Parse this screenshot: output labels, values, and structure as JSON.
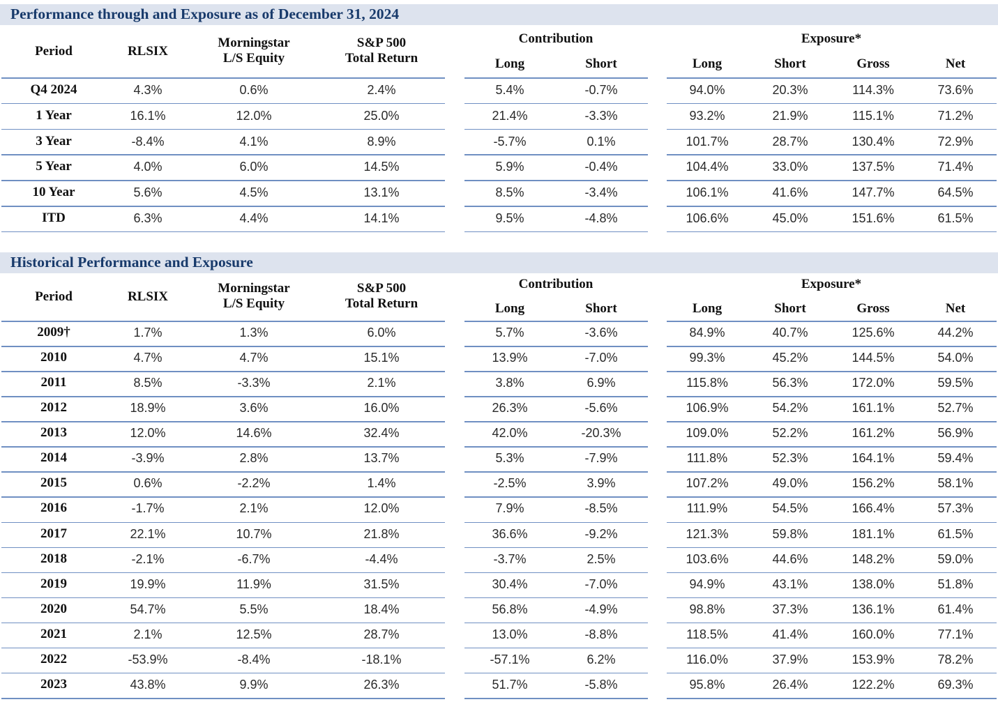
{
  "section1": {
    "title": "Performance through and Exposure as of December 31, 2024",
    "headers": {
      "period": "Period",
      "rlsix": "RLSIX",
      "morningstar_l1": "Morningstar",
      "morningstar_l2": "L/S Equity",
      "sp_l1": "S&P 500",
      "sp_l2": "Total Return",
      "contribution": "Contribution",
      "exposure": "Exposure*",
      "long": "Long",
      "short": "Short",
      "gross": "Gross",
      "net": "Net"
    },
    "rows": [
      [
        "Q4 2024",
        "4.3%",
        "0.6%",
        "2.4%",
        "5.4%",
        "-0.7%",
        "94.0%",
        "20.3%",
        "114.3%",
        "73.6%"
      ],
      [
        "1 Year",
        "16.1%",
        "12.0%",
        "25.0%",
        "21.4%",
        "-3.3%",
        "93.2%",
        "21.9%",
        "115.1%",
        "71.2%"
      ],
      [
        "3 Year",
        "-8.4%",
        "4.1%",
        "8.9%",
        "-5.7%",
        "0.1%",
        "101.7%",
        "28.7%",
        "130.4%",
        "72.9%"
      ],
      [
        "5 Year",
        "4.0%",
        "6.0%",
        "14.5%",
        "5.9%",
        "-0.4%",
        "104.4%",
        "33.0%",
        "137.5%",
        "71.4%"
      ],
      [
        "10 Year",
        "5.6%",
        "4.5%",
        "13.1%",
        "8.5%",
        "-3.4%",
        "106.1%",
        "41.6%",
        "147.7%",
        "64.5%"
      ],
      [
        "ITD",
        "6.3%",
        "4.4%",
        "14.1%",
        "9.5%",
        "-4.8%",
        "106.6%",
        "45.0%",
        "151.6%",
        "61.5%"
      ]
    ]
  },
  "section2": {
    "title": "Historical Performance and Exposure",
    "headers": {
      "period": "Period",
      "rlsix": "RLSIX",
      "morningstar_l1": "Morningstar",
      "morningstar_l2": "L/S Equity",
      "sp_l1": "S&P 500",
      "sp_l2": "Total Return",
      "contribution": "Contribution",
      "exposure": "Exposure*",
      "long": "Long",
      "short": "Short",
      "gross": "Gross",
      "net": "Net"
    },
    "rows": [
      [
        "2009†",
        "1.7%",
        "1.3%",
        "6.0%",
        "5.7%",
        "-3.6%",
        "84.9%",
        "40.7%",
        "125.6%",
        "44.2%"
      ],
      [
        "2010",
        "4.7%",
        "4.7%",
        "15.1%",
        "13.9%",
        "-7.0%",
        "99.3%",
        "45.2%",
        "144.5%",
        "54.0%"
      ],
      [
        "2011",
        "8.5%",
        "-3.3%",
        "2.1%",
        "3.8%",
        "6.9%",
        "115.8%",
        "56.3%",
        "172.0%",
        "59.5%"
      ],
      [
        "2012",
        "18.9%",
        "3.6%",
        "16.0%",
        "26.3%",
        "-5.6%",
        "106.9%",
        "54.2%",
        "161.1%",
        "52.7%"
      ],
      [
        "2013",
        "12.0%",
        "14.6%",
        "32.4%",
        "42.0%",
        "-20.3%",
        "109.0%",
        "52.2%",
        "161.2%",
        "56.9%"
      ],
      [
        "2014",
        "-3.9%",
        "2.8%",
        "13.7%",
        "5.3%",
        "-7.9%",
        "111.8%",
        "52.3%",
        "164.1%",
        "59.4%"
      ],
      [
        "2015",
        "0.6%",
        "-2.2%",
        "1.4%",
        "-2.5%",
        "3.9%",
        "107.2%",
        "49.0%",
        "156.2%",
        "58.1%"
      ],
      [
        "2016",
        "-1.7%",
        "2.1%",
        "12.0%",
        "7.9%",
        "-8.5%",
        "111.9%",
        "54.5%",
        "166.4%",
        "57.3%"
      ],
      [
        "2017",
        "22.1%",
        "10.7%",
        "21.8%",
        "36.6%",
        "-9.2%",
        "121.3%",
        "59.8%",
        "181.1%",
        "61.5%"
      ],
      [
        "2018",
        "-2.1%",
        "-6.7%",
        "-4.4%",
        "-3.7%",
        "2.5%",
        "103.6%",
        "44.6%",
        "148.2%",
        "59.0%"
      ],
      [
        "2019",
        "19.9%",
        "11.9%",
        "31.5%",
        "30.4%",
        "-7.0%",
        "94.9%",
        "43.1%",
        "138.0%",
        "51.8%"
      ],
      [
        "2020",
        "54.7%",
        "5.5%",
        "18.4%",
        "56.8%",
        "-4.9%",
        "98.8%",
        "37.3%",
        "136.1%",
        "61.4%"
      ],
      [
        "2021",
        "2.1%",
        "12.5%",
        "28.7%",
        "13.0%",
        "-8.8%",
        "118.5%",
        "41.4%",
        "160.0%",
        "77.1%"
      ],
      [
        "2022",
        "-53.9%",
        "-8.4%",
        "-18.1%",
        "-57.1%",
        "6.2%",
        "116.0%",
        "37.9%",
        "153.9%",
        "78.2%"
      ],
      [
        "2023",
        "43.8%",
        "9.9%",
        "26.3%",
        "51.7%",
        "-5.8%",
        "95.8%",
        "26.4%",
        "122.2%",
        "69.3%"
      ]
    ]
  }
}
